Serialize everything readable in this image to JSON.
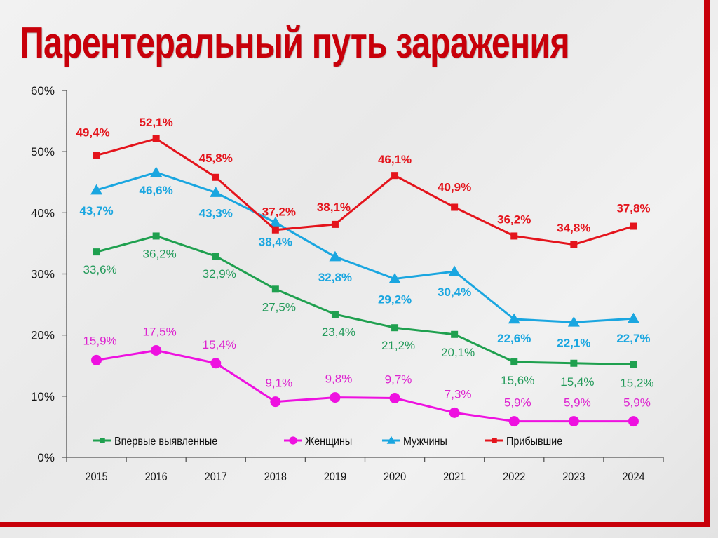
{
  "title": "Парентеральный путь заражения",
  "chart_data": {
    "type": "line",
    "title": "Парентеральный путь заражения",
    "xlabel": "",
    "ylabel": "",
    "categories": [
      "2015",
      "2016",
      "2017",
      "2018",
      "2019",
      "2020",
      "2021",
      "2022",
      "2023",
      "2024"
    ],
    "ylim": [
      0,
      60
    ],
    "yticks": [
      "0%",
      "10%",
      "20%",
      "30%",
      "40%",
      "50%",
      "60%"
    ],
    "grid": false,
    "legend_position": "bottom",
    "series": [
      {
        "name": "Впервые выявленные",
        "color": "#1fa04f",
        "marker": "square",
        "values": [
          33.6,
          36.2,
          32.9,
          27.5,
          23.4,
          21.2,
          20.1,
          15.6,
          15.4,
          15.2
        ],
        "labels": [
          "33,6%",
          "36,2%",
          "32,9%",
          "27,5%",
          "23,4%",
          "21,2%",
          "20,1%",
          "15,6%",
          "15,4%",
          "15,2%"
        ]
      },
      {
        "name": "Женщины",
        "color": "#ee11e0",
        "marker": "circle",
        "values": [
          15.9,
          17.5,
          15.4,
          9.1,
          9.8,
          9.7,
          7.3,
          5.9,
          5.9,
          5.9
        ],
        "labels": [
          "15,9%",
          "17,5%",
          "15,4%",
          "9,1%",
          "9,8%",
          "9,7%",
          "7,3%",
          "5,9%",
          "5,9%",
          "5,9%"
        ]
      },
      {
        "name": "Мужчины",
        "color": "#1aa6e0",
        "marker": "triangle",
        "values": [
          43.7,
          46.6,
          43.3,
          38.4,
          32.8,
          29.2,
          30.4,
          22.6,
          22.1,
          22.7
        ],
        "labels": [
          "43,7%",
          "46,6%",
          "43,3%",
          "38,4%",
          "32,8%",
          "29,2%",
          "30,4%",
          "22,6%",
          "22,1%",
          "22,7%"
        ]
      },
      {
        "name": "Прибывшие",
        "color": "#e4141c",
        "marker": "square",
        "values": [
          49.4,
          52.1,
          45.8,
          37.2,
          38.1,
          46.1,
          40.9,
          36.2,
          34.8,
          37.8
        ],
        "labels": [
          "49,4%",
          "52,1%",
          "45,8%",
          "37,2%",
          "38,1%",
          "46,1%",
          "40,9%",
          "36,2%",
          "34,8%",
          "37,8%"
        ]
      }
    ]
  }
}
